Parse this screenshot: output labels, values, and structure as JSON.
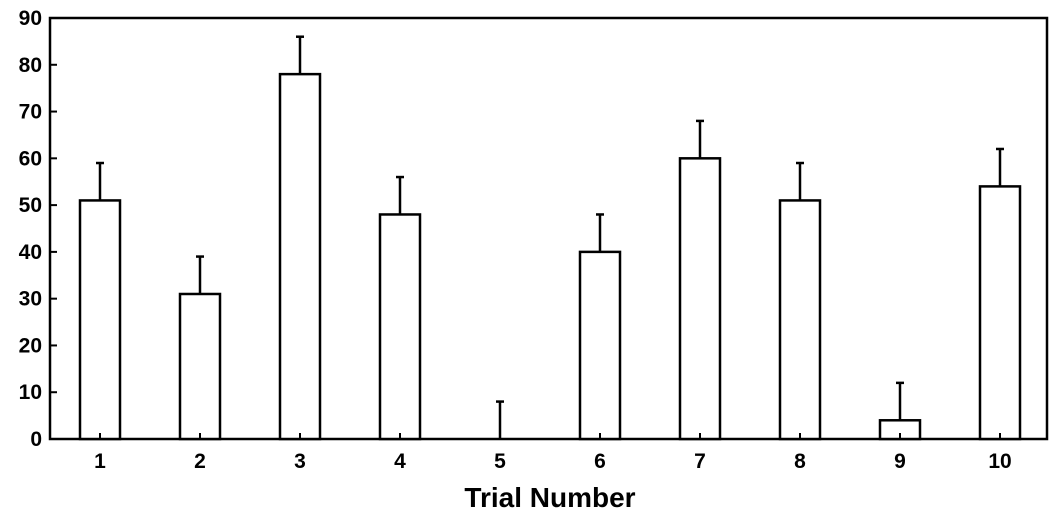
{
  "chart_data": {
    "type": "bar",
    "title": "",
    "xlabel": "Trial Number",
    "ylabel": "",
    "ylim": [
      0,
      90
    ],
    "yticks": [
      "0",
      "10",
      "20",
      "30",
      "40",
      "50",
      "60",
      "70",
      "80",
      "90"
    ],
    "categories": [
      "1",
      "2",
      "3",
      "4",
      "5",
      "6",
      "7",
      "8",
      "9",
      "10"
    ],
    "values": [
      51,
      31,
      78,
      48,
      0,
      40,
      60,
      51,
      4,
      54
    ],
    "error_upper": [
      8,
      8,
      8,
      8,
      8,
      8,
      8,
      8,
      8,
      8
    ],
    "grid": false,
    "bar_fill": "#ffffff",
    "bar_stroke": "#000000"
  }
}
